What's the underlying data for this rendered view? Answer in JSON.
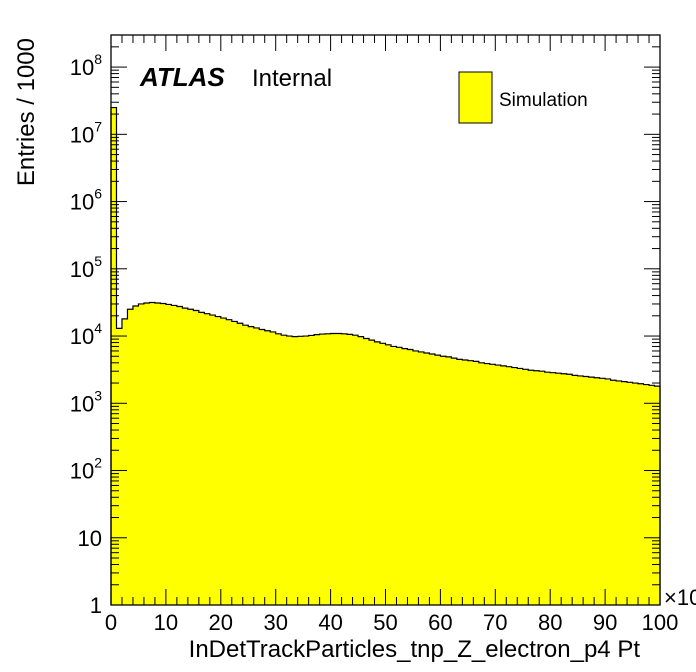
{
  "chart_data": {
    "type": "bar",
    "title": "",
    "xlabel": "InDetTrackParticles_tnp_Z_electron_p4 Pt",
    "ylabel": "Entries / 1000",
    "x_multiplier_label": "×10",
    "xlim": [
      0,
      100
    ],
    "ylim": [
      1,
      300000000
    ],
    "yscale": "log",
    "grid": false,
    "legend_position": "top-right",
    "x_tick_labels": [
      "0",
      "10",
      "20",
      "30",
      "40",
      "50",
      "60",
      "70",
      "80",
      "90",
      "100"
    ],
    "y_tick_labels": [
      {
        "value": 1,
        "base": "1",
        "exp": ""
      },
      {
        "value": 10,
        "base": "10",
        "exp": ""
      },
      {
        "value": 100,
        "base": "10",
        "exp": "2"
      },
      {
        "value": 1000,
        "base": "10",
        "exp": "3"
      },
      {
        "value": 10000,
        "base": "10",
        "exp": "4"
      },
      {
        "value": 100000,
        "base": "10",
        "exp": "5"
      },
      {
        "value": 1000000,
        "base": "10",
        "exp": "6"
      },
      {
        "value": 10000000,
        "base": "10",
        "exp": "7"
      },
      {
        "value": 100000000,
        "base": "10",
        "exp": "8"
      }
    ],
    "series": [
      {
        "name": "Simulation",
        "color": "#ffff00",
        "edge_color": "#000000",
        "bin_width": 1,
        "bin_starts": [
          0,
          1,
          2,
          3,
          4,
          5,
          6,
          7,
          8,
          9,
          10,
          11,
          12,
          13,
          14,
          15,
          16,
          17,
          18,
          19,
          20,
          21,
          22,
          23,
          24,
          25,
          26,
          27,
          28,
          29,
          30,
          31,
          32,
          33,
          34,
          35,
          36,
          37,
          38,
          39,
          40,
          41,
          42,
          43,
          44,
          45,
          46,
          47,
          48,
          49,
          50,
          51,
          52,
          53,
          54,
          55,
          56,
          57,
          58,
          59,
          60,
          61,
          62,
          63,
          64,
          65,
          66,
          67,
          68,
          69,
          70,
          71,
          72,
          73,
          74,
          75,
          76,
          77,
          78,
          79,
          80,
          81,
          82,
          83,
          84,
          85,
          86,
          87,
          88,
          89,
          90,
          91,
          92,
          93,
          94,
          95,
          96,
          97,
          98,
          99
        ],
        "values": [
          25000000,
          13000,
          18000,
          25000,
          28000,
          30000,
          31000,
          31500,
          31000,
          30500,
          29500,
          28500,
          27500,
          26000,
          25000,
          24000,
          22500,
          21500,
          20500,
          19500,
          18500,
          17500,
          16500,
          15500,
          14500,
          13800,
          13200,
          12500,
          12000,
          11500,
          10800,
          10300,
          10000,
          9800,
          9900,
          10000,
          10200,
          10500,
          10700,
          10800,
          10900,
          10900,
          10800,
          10600,
          10300,
          9800,
          9200,
          8700,
          8200,
          7800,
          7400,
          7000,
          6800,
          6500,
          6300,
          6000,
          5800,
          5600,
          5400,
          5200,
          5000,
          4900,
          4700,
          4500,
          4400,
          4300,
          4200,
          4000,
          3900,
          3800,
          3700,
          3600,
          3500,
          3400,
          3300,
          3200,
          3100,
          3050,
          3000,
          2900,
          2850,
          2800,
          2750,
          2700,
          2600,
          2550,
          2500,
          2450,
          2400,
          2350,
          2300,
          2200,
          2150,
          2100,
          2050,
          2000,
          1950,
          1900,
          1850,
          1800
        ]
      }
    ]
  },
  "labels": {
    "atlas": "ATLAS",
    "internal": "Internal"
  }
}
